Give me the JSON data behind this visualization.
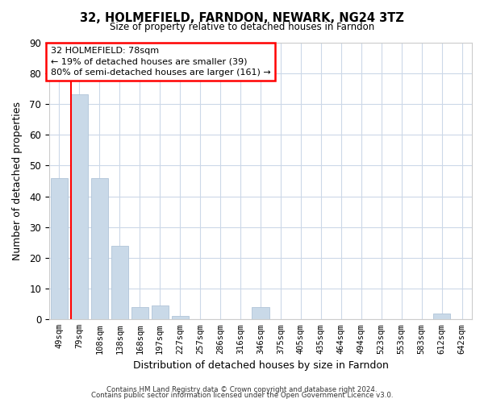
{
  "title": "32, HOLMEFIELD, FARNDON, NEWARK, NG24 3TZ",
  "subtitle": "Size of property relative to detached houses in Farndon",
  "xlabel": "Distribution of detached houses by size in Farndon",
  "ylabel": "Number of detached properties",
  "bar_color": "#c9d9e8",
  "bar_edge_color": "#b0c4d8",
  "bin_labels": [
    "49sqm",
    "79sqm",
    "108sqm",
    "138sqm",
    "168sqm",
    "197sqm",
    "227sqm",
    "257sqm",
    "286sqm",
    "316sqm",
    "346sqm",
    "375sqm",
    "405sqm",
    "435sqm",
    "464sqm",
    "494sqm",
    "523sqm",
    "553sqm",
    "583sqm",
    "612sqm",
    "642sqm"
  ],
  "bar_heights": [
    46,
    73,
    46,
    24,
    4,
    4.5,
    1,
    0,
    0,
    0,
    4,
    0,
    0,
    0,
    0,
    0,
    0,
    0,
    0,
    2,
    0
  ],
  "ylim": [
    0,
    90
  ],
  "yticks": [
    0,
    10,
    20,
    30,
    40,
    50,
    60,
    70,
    80,
    90
  ],
  "red_line_bar_index": 1,
  "annotation_line1": "32 HOLMEFIELD: 78sqm",
  "annotation_line2": "← 19% of detached houses are smaller (39)",
  "annotation_line3": "80% of semi-detached houses are larger (161) →",
  "footer_line1": "Contains HM Land Registry data © Crown copyright and database right 2024.",
  "footer_line2": "Contains public sector information licensed under the Open Government Licence v3.0.",
  "background_color": "#ffffff",
  "grid_color": "#ccd8e8"
}
